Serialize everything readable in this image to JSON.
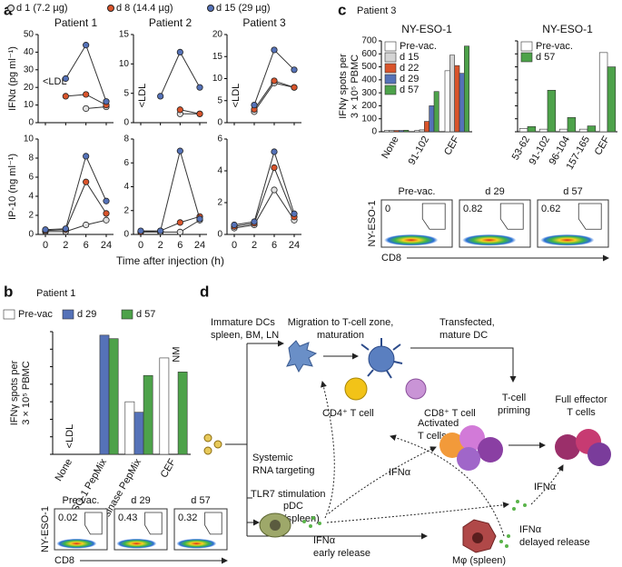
{
  "panels": [
    {
      "label": "a"
    },
    {
      "label": "b",
      "title": "Patient 1"
    },
    {
      "label": "c",
      "title": "Patient 3"
    },
    {
      "label": "d"
    }
  ],
  "chart_data": [
    {
      "type": "line",
      "title": "Patient 1",
      "ylabel": "IFNα (pg ml⁻¹)",
      "ylim": [
        0,
        50
      ],
      "yticks": [
        0,
        10,
        20,
        30,
        40,
        50
      ],
      "annotation": "<LDL",
      "line_color": "#333",
      "legend": "above",
      "series": [
        {
          "name": "d 1 (7.2 µg)",
          "color": "#e0e0e0",
          "values": [
            null,
            null,
            8,
            9
          ]
        },
        {
          "name": "d 8 (14.4 µg)",
          "color": "#d9542b",
          "values": [
            null,
            15,
            16,
            10
          ]
        },
        {
          "name": "d 15 (29 µg)",
          "color": "#5572b8",
          "values": [
            null,
            25,
            44,
            12
          ]
        }
      ]
    },
    {
      "type": "line",
      "title": "Patient 2",
      "ylim": [
        0,
        15
      ],
      "yticks": [
        0,
        5,
        10,
        15
      ],
      "annotation": "<LDL",
      "line_color": "#333",
      "series": [
        {
          "color": "#e0e0e0",
          "values": [
            null,
            null,
            1.5,
            1.5
          ]
        },
        {
          "color": "#d9542b",
          "values": [
            null,
            null,
            2.2,
            1.5
          ]
        },
        {
          "color": "#5572b8",
          "values": [
            null,
            4.5,
            12,
            6
          ]
        }
      ]
    },
    {
      "type": "line",
      "title": "Patient 3",
      "ylim": [
        0,
        20
      ],
      "yticks": [
        0,
        5,
        10,
        15,
        20
      ],
      "annotation": "<LDL",
      "line_color": "#333",
      "series": [
        {
          "color": "#e0e0e0",
          "values": [
            null,
            2.5,
            9,
            8
          ]
        },
        {
          "color": "#d9542b",
          "values": [
            null,
            3,
            9.5,
            8
          ]
        },
        {
          "color": "#5572b8",
          "values": [
            null,
            4,
            16.5,
            12
          ]
        }
      ]
    },
    {
      "type": "line",
      "ylabel": "IP-10 (ng ml⁻¹)",
      "categories": [
        "0",
        "2",
        "6",
        "24"
      ],
      "ylim": [
        0,
        10
      ],
      "yticks": [
        0,
        2,
        4,
        6,
        8,
        10
      ],
      "line_color": "#333",
      "series": [
        {
          "color": "#e0e0e0",
          "values": [
            0.3,
            0.3,
            1,
            1.5
          ]
        },
        {
          "color": "#d9542b",
          "values": [
            0.4,
            0.5,
            5.5,
            2.2
          ]
        },
        {
          "color": "#5572b8",
          "values": [
            0.5,
            0.6,
            8.2,
            3.5
          ]
        }
      ]
    },
    {
      "type": "line",
      "categories": [
        "0",
        "2",
        "6",
        "24"
      ],
      "xlabel": "Time after injection (h)",
      "ylim": [
        0,
        8
      ],
      "yticks": [
        0,
        2,
        4,
        6,
        8
      ],
      "line_color": "#333",
      "series": [
        {
          "color": "#e0e0e0",
          "values": [
            0.2,
            0.2,
            0.2,
            1.2
          ]
        },
        {
          "color": "#d9542b",
          "values": [
            0.2,
            0.3,
            1,
            1.5
          ]
        },
        {
          "color": "#5572b8",
          "values": [
            0.3,
            0.3,
            7,
            1.3
          ]
        }
      ]
    },
    {
      "type": "line",
      "categories": [
        "0",
        "2",
        "6",
        "24"
      ],
      "ylim": [
        0,
        6
      ],
      "yticks": [
        0,
        2,
        4,
        6
      ],
      "line_color": "#333",
      "series": [
        {
          "color": "#e0e0e0",
          "values": [
            0.4,
            0.6,
            2.8,
            0.9
          ]
        },
        {
          "color": "#d9542b",
          "values": [
            0.5,
            0.7,
            4.2,
            1.1
          ]
        },
        {
          "color": "#5572b8",
          "values": [
            0.6,
            0.8,
            5.2,
            1.3
          ]
        }
      ]
    },
    {
      "type": "bar",
      "title": "NY-ESO-1",
      "ylabel": [
        "IFNγ spots per",
        "3 × 10⁵ PBMC"
      ],
      "categories": [
        "None",
        "91-102",
        "CEF"
      ],
      "ylim": [
        0,
        700
      ],
      "yticks": [
        0,
        100,
        200,
        300,
        400,
        500,
        600,
        700
      ],
      "legend": "upper left",
      "series": [
        {
          "name": "Pre-vac.",
          "color": "#ffffff",
          "values": [
            10,
            10,
            470
          ]
        },
        {
          "name": "d 15",
          "color": "#d4d4d4",
          "values": [
            10,
            15,
            590
          ]
        },
        {
          "name": "d 22",
          "color": "#d9542b",
          "values": [
            10,
            80,
            510
          ]
        },
        {
          "name": "d 29",
          "color": "#5572b8",
          "values": [
            10,
            200,
            450
          ]
        },
        {
          "name": "d 57",
          "color": "#4da24a",
          "values": [
            12,
            310,
            660
          ]
        }
      ]
    },
    {
      "type": "bar",
      "title": "NY-ESO-1",
      "categories": [
        "53-62",
        "91-102",
        "96-104",
        "157-165",
        "CEF"
      ],
      "ylim": [
        0,
        700
      ],
      "yticks": [
        0,
        100,
        200,
        300,
        400,
        500,
        600,
        700
      ],
      "tick_labels": false,
      "legend": "upper left",
      "series": [
        {
          "name": "Pre-vac.",
          "color": "#ffffff",
          "values": [
            25,
            20,
            20,
            20,
            610
          ]
        },
        {
          "name": "d 57",
          "color": "#4da24a",
          "values": [
            40,
            320,
            110,
            45,
            500
          ]
        }
      ]
    },
    {
      "type": "bar",
      "ylabel": [
        "IFNγ spots per",
        "3 × 10⁵ PBMC"
      ],
      "categories": [
        "None",
        "NY-ESO-1 PepMix",
        "Tyrosinase PepMix",
        "CEF"
      ],
      "ylim": [
        0,
        700
      ],
      "yticks": [
        0,
        100,
        200,
        300,
        400,
        500,
        600,
        700
      ],
      "tick_labels": false,
      "legend": "above",
      "annotations": [
        "<LDL",
        "NM"
      ],
      "series": [
        {
          "name": "Pre-vac",
          "color": "#ffffff",
          "values": [
            null,
            0,
            300,
            550
          ]
        },
        {
          "name": "d 29",
          "color": "#5572b8",
          "values": [
            null,
            680,
            240,
            null
          ]
        },
        {
          "name": "d 57",
          "color": "#4da24a",
          "values": [
            null,
            660,
            450,
            470
          ]
        }
      ]
    }
  ],
  "flow_c": {
    "ylabel": "NY-ESO-1",
    "xlabel": "CD8",
    "plots": [
      {
        "title": "Pre-vac.",
        "value": 0
      },
      {
        "title": "d 29",
        "value": 0.82
      },
      {
        "title": "d 57",
        "value": 0.62
      }
    ]
  },
  "flow_b": {
    "ylabel": "NY-ESO-1",
    "xlabel": "CD8",
    "plots": [
      {
        "title": "Pre-vac.",
        "value": 0.02
      },
      {
        "title": "d 29",
        "value": 0.43
      },
      {
        "title": "d 57",
        "value": 0.32
      }
    ]
  },
  "diagram": {
    "immature": [
      "Immature DCs",
      "spleen, BM, LN"
    ],
    "migration": [
      "Migration to T-cell zone,",
      "maturation"
    ],
    "transfected": [
      "Transfected,",
      "mature DC"
    ],
    "cd4": "CD4⁺ T cell",
    "cd8": "CD8⁺ T cell",
    "priming": [
      "T-cell",
      "priming"
    ],
    "activated": [
      "Activated",
      "T cells"
    ],
    "effector": [
      "Full effector",
      "T cells"
    ],
    "systemic": [
      "Systemic",
      "RNA targeting"
    ],
    "tlr7": "TLR7 stimulation",
    "pdc": [
      "pDC",
      "(spleen)"
    ],
    "early": [
      "IFNα",
      "early release"
    ],
    "ifn_mid": "IFNα",
    "ifn_right": "IFNα",
    "delayed": [
      "IFNα",
      "delayed release"
    ],
    "mphi": "Mφ (spleen)"
  }
}
